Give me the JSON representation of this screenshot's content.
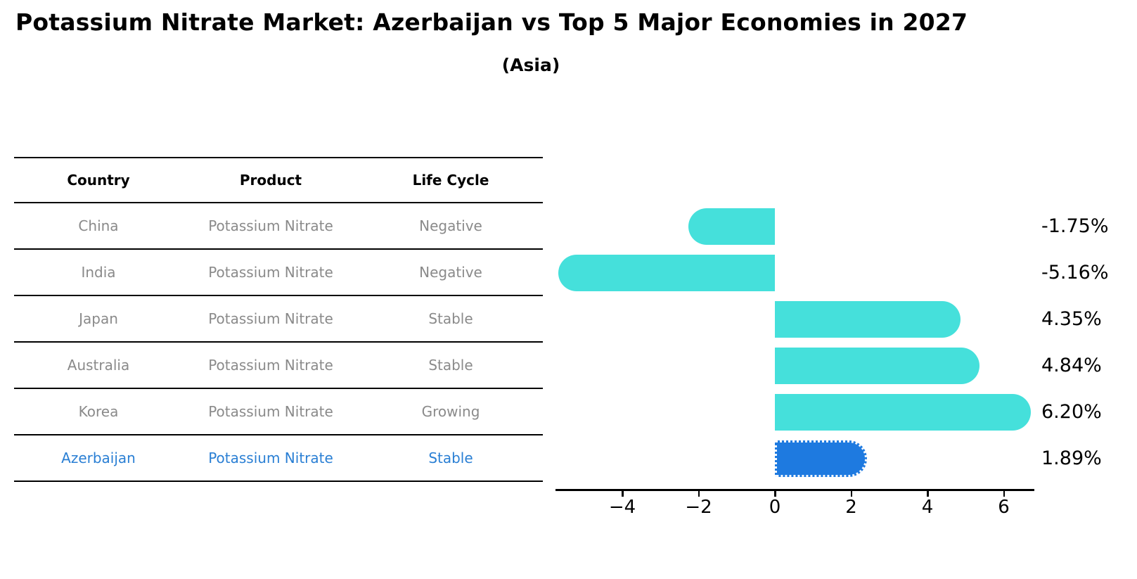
{
  "title": "Potassium Nitrate Market: Azerbaijan vs Top 5 Major Economies in 2027",
  "subtitle": "(Asia)",
  "table": {
    "headers": [
      "Country",
      "Product",
      "Life Cycle"
    ],
    "rows": [
      {
        "country": "China",
        "product": "Potassium Nitrate",
        "life_cycle": "Negative",
        "highlighted": false
      },
      {
        "country": "India",
        "product": "Potassium Nitrate",
        "life_cycle": "Negative",
        "highlighted": false
      },
      {
        "country": "Japan",
        "product": "Potassium Nitrate",
        "life_cycle": "Stable",
        "highlighted": false
      },
      {
        "country": "Australia",
        "product": "Potassium Nitrate",
        "life_cycle": "Stable",
        "highlighted": false
      },
      {
        "country": "Korea",
        "product": "Potassium Nitrate",
        "life_cycle": "Growing",
        "highlighted": false
      },
      {
        "country": "Azerbaijan",
        "product": "Potassium Nitrate",
        "life_cycle": "Stable",
        "highlighted": true
      }
    ]
  },
  "chart_data": {
    "type": "bar",
    "orientation": "horizontal",
    "categories": [
      "China",
      "India",
      "Japan",
      "Australia",
      "Korea",
      "Azerbaijan"
    ],
    "values": [
      -1.75,
      -5.16,
      4.35,
      4.84,
      6.2,
      1.89
    ],
    "value_labels": [
      "-1.75%",
      "-5.16%",
      "4.35%",
      "4.84%",
      "6.20%",
      "1.89%"
    ],
    "x_ticks": [
      -4,
      -2,
      0,
      2,
      4,
      6
    ],
    "x_tick_labels": [
      "−4",
      "−2",
      "0",
      "2",
      "4",
      "6"
    ],
    "xlim": [
      -5.75,
      6.8
    ],
    "grid": false,
    "legend": "none",
    "highlight_index": 5
  },
  "colors": {
    "bar_cyan": "#45E0DB",
    "bar_highlight_blue": "#1E7AE0",
    "row_text_gray": "#8A8A8A",
    "highlight_text_blue": "#2A7FD4"
  }
}
